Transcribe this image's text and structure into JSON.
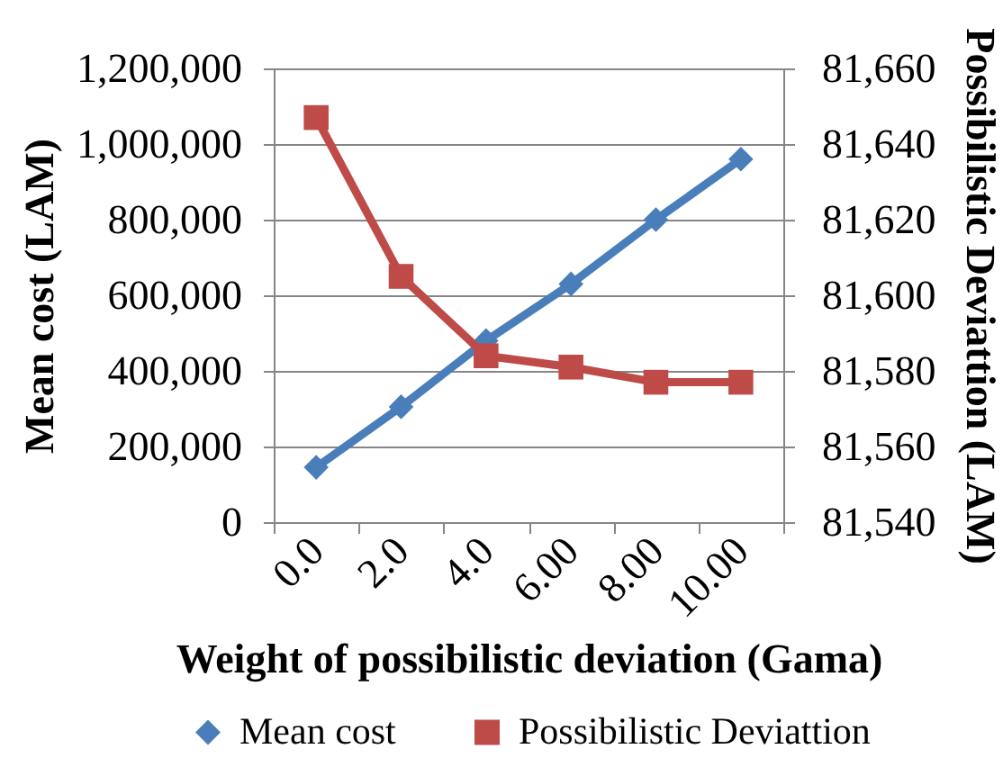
{
  "chart_data": {
    "type": "line",
    "xlabel": "Weight of possibilistic deviation (Gama)",
    "ylabel": "Mean cost (LAM)",
    "y2label": "Possibilistic Deviattion (LAM)",
    "categories": [
      "0.0",
      "2.0",
      "4.0",
      "6.00",
      "8.00",
      "10.00"
    ],
    "series": [
      {
        "name": "Mean cost",
        "color": "#4a7ebb",
        "marker": "diamond",
        "values": [
          145000,
          305000,
          480000,
          630000,
          800000,
          960000
        ]
      },
      {
        "name": "Possibilistic Deviattion",
        "color": "#be4b48",
        "marker": "square",
        "axis": "y2",
        "values": [
          81647,
          81605,
          81584,
          81581,
          81577,
          81577
        ]
      }
    ],
    "ylim": [
      0,
      1200000
    ],
    "yticks": [
      0,
      {
        "value": 200000,
        "label": "200,000"
      },
      {
        "value": 400000,
        "label": "400,000"
      },
      {
        "value": 600000,
        "label": "600,000"
      },
      {
        "value": 800000,
        "label": "800,000"
      },
      {
        "value": 1000000,
        "label": "1,000,000"
      },
      {
        "value": 1200000,
        "label": "1,200,000"
      }
    ],
    "y2lim": [
      81540,
      81660
    ],
    "y2ticks": [
      {
        "value": 81540,
        "label": "81,540"
      },
      {
        "value": 81560,
        "label": "81,560"
      },
      {
        "value": 81580,
        "label": "81,580"
      },
      {
        "value": 81600,
        "label": "81,600"
      },
      {
        "value": 81620,
        "label": "81,620"
      },
      {
        "value": 81640,
        "label": "81,640"
      },
      {
        "value": 81660,
        "label": "81,660"
      }
    ],
    "grid": "y",
    "legend": "bottom",
    "line_style": "solid"
  }
}
